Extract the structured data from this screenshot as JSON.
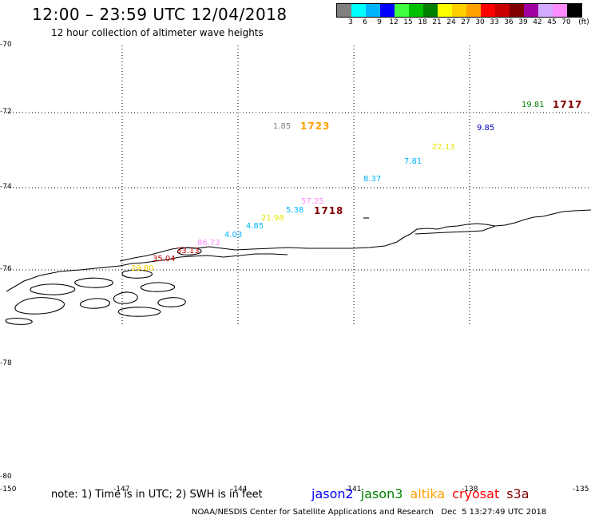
{
  "header": {
    "title": "12:00 – 23:59 UTC 12/04/2018",
    "subtitle": "12 hour collection of altimeter wave heights"
  },
  "legend": {
    "swatches": [
      {
        "label": "3",
        "color": "#808080"
      },
      {
        "label": "6",
        "color": "#00ffff"
      },
      {
        "label": "9",
        "color": "#00b4ff"
      },
      {
        "label": "12",
        "color": "#0000ff"
      },
      {
        "label": "15",
        "color": "#40ff40"
      },
      {
        "label": "18",
        "color": "#00c000"
      },
      {
        "label": "21",
        "color": "#008000"
      },
      {
        "label": "24",
        "color": "#ffff00"
      },
      {
        "label": "27",
        "color": "#ffd000"
      },
      {
        "label": "30",
        "color": "#ffa000"
      },
      {
        "label": "33",
        "color": "#ff0000"
      },
      {
        "label": "36",
        "color": "#c80000"
      },
      {
        "label": "39",
        "color": "#800000"
      },
      {
        "label": "42",
        "color": "#a000a0"
      },
      {
        "label": "45",
        "color": "#d2aaff"
      },
      {
        "label": "70",
        "color": "#ff8cff"
      },
      {
        "label": "",
        "color": "#000000"
      }
    ],
    "unit": "(ft)"
  },
  "axes": {
    "lat_labels": [
      "-70",
      "-72",
      "-74",
      "-76",
      "-78",
      "-80"
    ],
    "lon_labels": [
      "-150",
      "-147",
      "-144",
      "-141",
      "-138",
      "-135"
    ]
  },
  "observations": [
    {
      "text": "19.81",
      "color": "#008000",
      "big": false
    },
    {
      "text": "1717",
      "color": "#800000",
      "big": true
    },
    {
      "text": "1.85",
      "color": "#808080",
      "big": false
    },
    {
      "text": "1723",
      "color": "#ffa000",
      "big": true
    },
    {
      "text": "9.85",
      "color": "#0000c0",
      "big": false
    },
    {
      "text": "22.13",
      "color": "#e6e600",
      "big": false
    },
    {
      "text": "7.81",
      "color": "#00b4ff",
      "big": false
    },
    {
      "text": "8.37",
      "color": "#00b4ff",
      "big": false
    },
    {
      "text": "57.25",
      "color": "#ff8cff",
      "big": false
    },
    {
      "text": "5.38",
      "color": "#00b4ff",
      "big": false
    },
    {
      "text": "1718",
      "color": "#800000",
      "big": true
    },
    {
      "text": "21.98",
      "color": "#e6e600",
      "big": false
    },
    {
      "text": "4.85",
      "color": "#00b4ff",
      "big": false
    },
    {
      "text": "4.03",
      "color": "#00b4ff",
      "big": false
    },
    {
      "text": "86.73",
      "color": "#ff8cff",
      "big": false
    },
    {
      "text": "33.13",
      "color": "#c80000",
      "big": false
    },
    {
      "text": "35.04",
      "color": "#c80000",
      "big": false
    },
    {
      "text": "29.80",
      "color": "#ffd000",
      "big": false
    }
  ],
  "note": "note: 1) Time is in UTC; 2) SWH is in feet",
  "satellites": [
    {
      "name": "jason2",
      "color": "#0000ff"
    },
    {
      "name": "jason3",
      "color": "#008000"
    },
    {
      "name": "altika",
      "color": "#ffa000"
    },
    {
      "name": "cryosat",
      "color": "#ff0000"
    },
    {
      "name": "s3a",
      "color": "#800000"
    }
  ],
  "footer": "NOAA/NESDIS Center for Satellite Applications and Research   Dec  5 13:27:49 UTC 2018"
}
